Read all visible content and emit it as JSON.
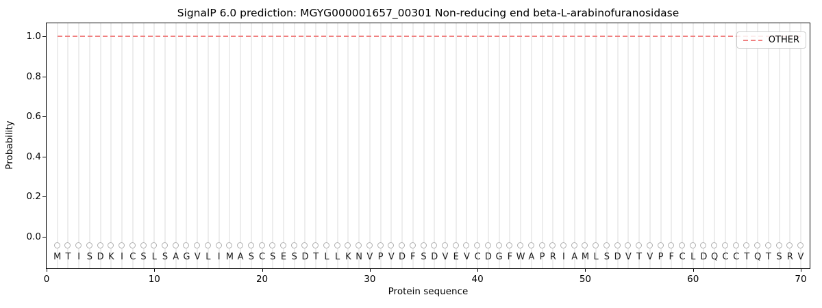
{
  "chart_data": {
    "type": "line",
    "title": "SignalP 6.0 prediction: MGYG000001657_00301 Non-reducing end beta-L-arabinofuranosidase",
    "xlabel": "Protein sequence",
    "ylabel": "Probability",
    "x_ticks": [
      "0",
      "10",
      "20",
      "30",
      "40",
      "50",
      "60",
      "70"
    ],
    "y_ticks": [
      "0.0",
      "0.2",
      "0.4",
      "0.6",
      "0.8",
      "1.0"
    ],
    "xlim": [
      0,
      71
    ],
    "ylim": [
      -0.165,
      1.065
    ],
    "grid": "light vertical gridline at every residue position 1-70",
    "legend": {
      "position": "upper right",
      "entries": [
        {
          "label": "OTHER",
          "color": "#f08080",
          "linestyle": "dashed"
        }
      ]
    },
    "sequence": "MTISDKICSLSAGVLIMASCSESDTLLKNVPVDFSDVEVCDGFWAPRIAMLSDVTVPFCLDQCCTQTSRV",
    "series": [
      {
        "name": "OTHER",
        "color": "#f08080",
        "linestyle": "dashed",
        "x": [
          1,
          70
        ],
        "y": [
          1.0,
          1.0
        ]
      }
    ],
    "markers": {
      "shape": "circle",
      "y": -0.045,
      "color": "#b0b0b0",
      "per_residue": true
    },
    "colors": {
      "gridline": "#ededed",
      "axis": "#000000",
      "letter": "#1c1c1c",
      "legend_border": "#cccccc"
    }
  }
}
